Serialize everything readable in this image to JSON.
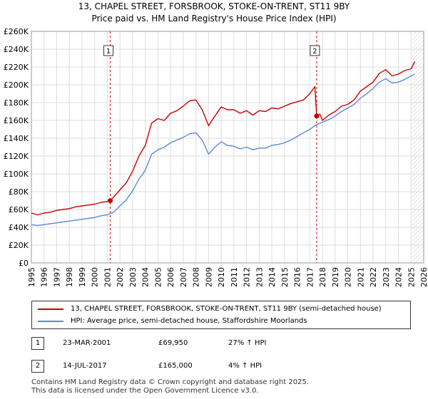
{
  "title": "13, CHAPEL STREET, FORSBROOK, STOKE-ON-TRENT, ST11 9BY",
  "subtitle": "Price paid vs. HM Land Registry's House Price Index (HPI)",
  "colors": {
    "property": "#cc0000",
    "hpi": "#5b8bd0",
    "marker_line": "#cc0000",
    "future_hatch": "#cccccc"
  },
  "chart_data": {
    "type": "line",
    "title": "Price paid vs. HM Land Registry's House Price Index (HPI)",
    "xlabel": "",
    "ylabel": "",
    "xlim": [
      1995,
      2026
    ],
    "ylim": [
      0,
      260000
    ],
    "x_ticks": [
      "1995",
      "1996",
      "1997",
      "1998",
      "1999",
      "2000",
      "2001",
      "2002",
      "2003",
      "2004",
      "2005",
      "2006",
      "2007",
      "2008",
      "2009",
      "2010",
      "2011",
      "2012",
      "2013",
      "2014",
      "2015",
      "2016",
      "2017",
      "2018",
      "2019",
      "2020",
      "2021",
      "2022",
      "2023",
      "2024",
      "2025",
      "2026"
    ],
    "y_ticks": [
      "£0",
      "£20K",
      "£40K",
      "£60K",
      "£80K",
      "£100K",
      "£120K",
      "£140K",
      "£160K",
      "£180K",
      "£200K",
      "£220K",
      "£240K",
      "£260K"
    ],
    "series": [
      {
        "name": "13, CHAPEL STREET, FORSBROOK, STOKE-ON-TRENT, ST11 9BY (semi-detached house)",
        "x": [
          1995.0,
          1995.5,
          1996.0,
          1996.5,
          1997.0,
          1997.5,
          1998.0,
          1998.5,
          1999.0,
          1999.5,
          2000.0,
          2000.5,
          2001.0,
          2001.23,
          2001.5,
          2002.0,
          2002.5,
          2003.0,
          2003.5,
          2004.0,
          2004.5,
          2005.0,
          2005.5,
          2006.0,
          2006.5,
          2007.0,
          2007.5,
          2008.0,
          2008.5,
          2009.0,
          2009.5,
          2010.0,
          2010.5,
          2011.0,
          2011.5,
          2012.0,
          2012.5,
          2013.0,
          2013.5,
          2014.0,
          2014.5,
          2015.0,
          2015.5,
          2016.0,
          2016.5,
          2017.0,
          2017.4,
          2017.54,
          2017.8,
          2018.0,
          2018.5,
          2019.0,
          2019.5,
          2020.0,
          2020.5,
          2021.0,
          2021.5,
          2022.0,
          2022.5,
          2023.0,
          2023.5,
          2024.0,
          2024.5,
          2025.0,
          2025.3
        ],
        "values": [
          56000,
          54000,
          56000,
          57000,
          59000,
          60000,
          61000,
          63000,
          64000,
          65000,
          66000,
          68000,
          69000,
          69950,
          74000,
          82000,
          90000,
          103000,
          120000,
          132000,
          157000,
          162000,
          160000,
          168000,
          171000,
          176000,
          182000,
          183000,
          172000,
          154000,
          165000,
          175000,
          172000,
          172000,
          168000,
          171000,
          166000,
          171000,
          170000,
          174000,
          173000,
          176000,
          179000,
          181000,
          183000,
          190000,
          198000,
          165000,
          167000,
          160000,
          166000,
          170000,
          176000,
          178000,
          183000,
          193000,
          198000,
          203000,
          213000,
          217000,
          210000,
          212000,
          216000,
          218000,
          226000
        ]
      },
      {
        "name": "HPI: Average price, semi-detached house, Staffordshire Moorlands",
        "x": [
          1995.0,
          1995.5,
          1996.0,
          1996.5,
          1997.0,
          1997.5,
          1998.0,
          1998.5,
          1999.0,
          1999.5,
          2000.0,
          2000.5,
          2001.0,
          2001.5,
          2002.0,
          2002.5,
          2003.0,
          2003.5,
          2004.0,
          2004.5,
          2005.0,
          2005.5,
          2006.0,
          2006.5,
          2007.0,
          2007.5,
          2008.0,
          2008.5,
          2009.0,
          2009.5,
          2010.0,
          2010.5,
          2011.0,
          2011.5,
          2012.0,
          2012.5,
          2013.0,
          2013.5,
          2014.0,
          2014.5,
          2015.0,
          2015.5,
          2016.0,
          2016.5,
          2017.0,
          2017.5,
          2018.0,
          2018.5,
          2019.0,
          2019.5,
          2020.0,
          2020.5,
          2021.0,
          2021.5,
          2022.0,
          2022.5,
          2023.0,
          2023.5,
          2024.0,
          2024.5,
          2025.0,
          2025.3
        ],
        "values": [
          43000,
          42000,
          43000,
          44000,
          45000,
          46000,
          47000,
          48000,
          49000,
          50000,
          51000,
          53000,
          54000,
          57000,
          64000,
          71000,
          81000,
          94000,
          104000,
          122000,
          127000,
          130000,
          135000,
          138000,
          141000,
          145000,
          146000,
          138000,
          122000,
          130000,
          136000,
          132000,
          131000,
          128000,
          130000,
          127000,
          129000,
          129000,
          132000,
          133000,
          135000,
          138000,
          142000,
          146000,
          150000,
          155000,
          158000,
          161000,
          165000,
          170000,
          174000,
          178000,
          185000,
          190000,
          196000,
          203000,
          207000,
          202000,
          203000,
          206000,
          210000,
          212000
        ]
      }
    ],
    "annotations": [
      {
        "label": "1",
        "x": 2001.23,
        "y": 69950
      },
      {
        "label": "2",
        "x": 2017.54,
        "y": 165000
      }
    ]
  },
  "legend": [
    {
      "label": "13, CHAPEL STREET, FORSBROOK, STOKE-ON-TRENT, ST11 9BY (semi-detached house)"
    },
    {
      "label": "HPI: Average price, semi-detached house, Staffordshire Moorlands"
    }
  ],
  "transactions": [
    {
      "num": "1",
      "date": "23-MAR-2001",
      "price": "£69,950",
      "delta": "27% ↑ HPI"
    },
    {
      "num": "2",
      "date": "14-JUL-2017",
      "price": "£165,000",
      "delta": "4% ↑ HPI"
    }
  ],
  "footer": {
    "line1": "Contains HM Land Registry data © Crown copyright and database right 2025.",
    "line2": "This data is licensed under the Open Government Licence v3.0."
  }
}
